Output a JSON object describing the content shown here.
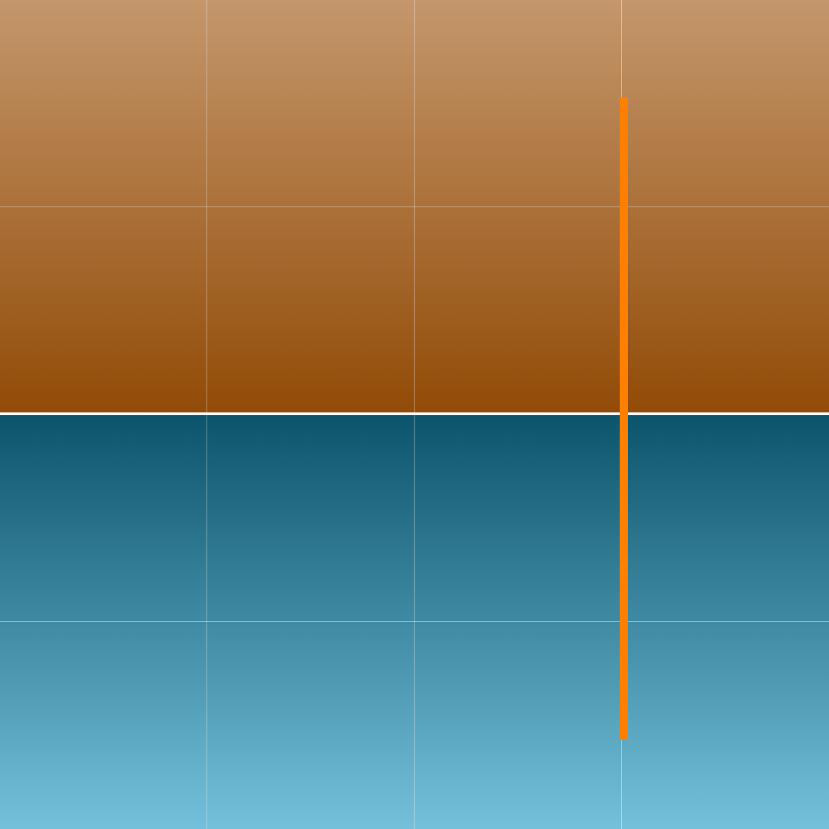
{
  "colors": {
    "top_gradient_start": "#C4976C",
    "top_gradient_end": "#924B07",
    "bottom_gradient_start": "#0C546C",
    "bottom_gradient_end": "#74C0DA",
    "horizon_line": "#FFFFFF",
    "indicator": "#FF7F00"
  }
}
